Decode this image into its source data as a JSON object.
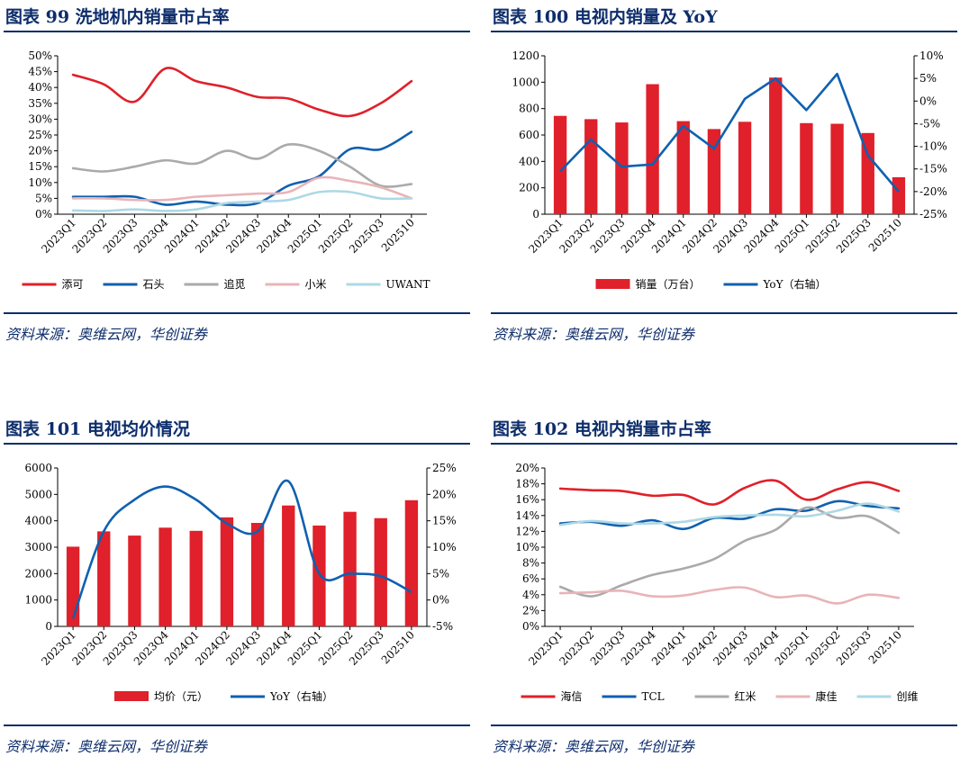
{
  "source_note": "资料来源：奥维云网，华创证券",
  "quarters": [
    "2023Q1",
    "2023Q2",
    "2023Q3",
    "2023Q4",
    "2024Q1",
    "2024Q2",
    "2024Q3",
    "2024Q4",
    "2025Q1",
    "2025Q2",
    "2025Q3",
    "202510"
  ],
  "charts": [
    {
      "title": "图表 99    洗地机内销量市占率",
      "chart_data": {
        "type": "line",
        "categories": [
          "2023Q1",
          "2023Q2",
          "2023Q3",
          "2023Q4",
          "2024Q1",
          "2024Q2",
          "2024Q3",
          "2024Q4",
          "2025Q1",
          "2025Q2",
          "2025Q3",
          "202510"
        ],
        "ylim": [
          0,
          50
        ],
        "yunit": "%",
        "ystep": 5,
        "series": [
          {
            "name": "添可",
            "color": "#e0202a",
            "values": [
              44,
              41,
              35.5,
              46,
              42,
              40,
              37,
              36.5,
              33,
              31,
              35,
              42
            ]
          },
          {
            "name": "石头",
            "color": "#1060b0",
            "values": [
              5.5,
              5.5,
              5.5,
              3,
              4,
              3,
              3.5,
              9,
              12,
              20.5,
              20.5,
              26
            ]
          },
          {
            "name": "追觅",
            "color": "#aaaaaa",
            "values": [
              14.5,
              13.5,
              15,
              17,
              16,
              20,
              17.5,
              22,
              20,
              15,
              9,
              9.5
            ]
          },
          {
            "name": "小米",
            "color": "#e8b4b8",
            "values": [
              5,
              5,
              4.5,
              4.5,
              5.5,
              6,
              6.5,
              7,
              11.5,
              10.5,
              8.5,
              5
            ]
          },
          {
            "name": "UWANT",
            "color": "#add8e6",
            "values": [
              1.2,
              1,
              1.5,
              1,
              1.5,
              3.5,
              4,
              4.5,
              7,
              7,
              5,
              5
            ]
          }
        ]
      }
    },
    {
      "title": "图表 100    电视内销量及 YoY",
      "chart_data": {
        "type": "bar+line",
        "categories": [
          "2023Q1",
          "2023Q2",
          "2023Q3",
          "2023Q4",
          "2024Q1",
          "2024Q2",
          "2024Q3",
          "2024Q4",
          "2025Q1",
          "2025Q2",
          "2025Q3",
          "202510"
        ],
        "ylim": [
          0,
          1200
        ],
        "ystep": 200,
        "y2lim": [
          -25,
          10
        ],
        "y2step": 5,
        "y2unit": "%",
        "bars": {
          "name": "销量（万台）",
          "color": "#e0202a",
          "values": [
            745,
            720,
            695,
            985,
            705,
            645,
            700,
            1035,
            690,
            685,
            615,
            280
          ]
        },
        "line": {
          "name": "YoY（右轴）",
          "color": "#1060b0",
          "values": [
            -15.5,
            -8.5,
            -14.5,
            -14,
            -5.5,
            -10.5,
            0.5,
            5,
            -2,
            6,
            -12,
            -20
          ]
        }
      }
    },
    {
      "title": "图表 101    电视均价情况",
      "chart_data": {
        "type": "bar+line",
        "categories": [
          "2023Q1",
          "2023Q2",
          "2023Q3",
          "2023Q4",
          "2024Q1",
          "2024Q2",
          "2024Q3",
          "2024Q4",
          "2025Q1",
          "2025Q2",
          "2025Q3",
          "202510"
        ],
        "ylim": [
          0,
          6000
        ],
        "ystep": 1000,
        "y2lim": [
          -5,
          25
        ],
        "y2step": 5,
        "y2unit": "%",
        "bars": {
          "name": "均价（元）",
          "color": "#e0202a",
          "values": [
            3020,
            3600,
            3440,
            3740,
            3620,
            4130,
            3920,
            4580,
            3820,
            4340,
            4100,
            4780
          ]
        },
        "line": {
          "name": "YoY（右轴）",
          "color": "#1060b0",
          "values": [
            -3.5,
            13,
            19,
            21.5,
            19,
            14.5,
            13,
            22.5,
            5,
            5,
            4.5,
            1.5
          ]
        }
      }
    },
    {
      "title": "图表 102    电视内销量市占率",
      "chart_data": {
        "type": "line",
        "categories": [
          "2023Q1",
          "2023Q2",
          "2023Q3",
          "2023Q4",
          "2024Q1",
          "2024Q2",
          "2024Q3",
          "2024Q4",
          "2025Q1",
          "2025Q2",
          "2025Q3",
          "202510"
        ],
        "ylim": [
          0,
          20
        ],
        "yunit": "%",
        "ystep": 2,
        "series": [
          {
            "name": "海信",
            "color": "#e0202a",
            "values": [
              17.4,
              17.2,
              17.1,
              16.5,
              16.6,
              15.4,
              17.5,
              18.4,
              16,
              17.3,
              18.2,
              17.1
            ]
          },
          {
            "name": "TCL",
            "color": "#1060b0",
            "values": [
              13,
              13.2,
              12.7,
              13.4,
              12.3,
              13.7,
              13.6,
              14.8,
              14.6,
              15.8,
              15.2,
              14.9
            ]
          },
          {
            "name": "红米",
            "color": "#aaaaaa",
            "values": [
              5,
              3.8,
              5.2,
              6.5,
              7.3,
              8.5,
              10.8,
              12.2,
              15,
              13.7,
              13.9,
              11.8
            ]
          },
          {
            "name": "康佳",
            "color": "#e8b4b8",
            "values": [
              4.2,
              4.3,
              4.5,
              3.8,
              3.9,
              4.6,
              4.9,
              3.7,
              3.9,
              2.9,
              4,
              3.6
            ]
          },
          {
            "name": "创维",
            "color": "#add8e6",
            "values": [
              12.8,
              13.3,
              13,
              13,
              13.2,
              13.8,
              14,
              14.1,
              13.9,
              14.6,
              15.5,
              14.5
            ]
          }
        ]
      }
    }
  ]
}
